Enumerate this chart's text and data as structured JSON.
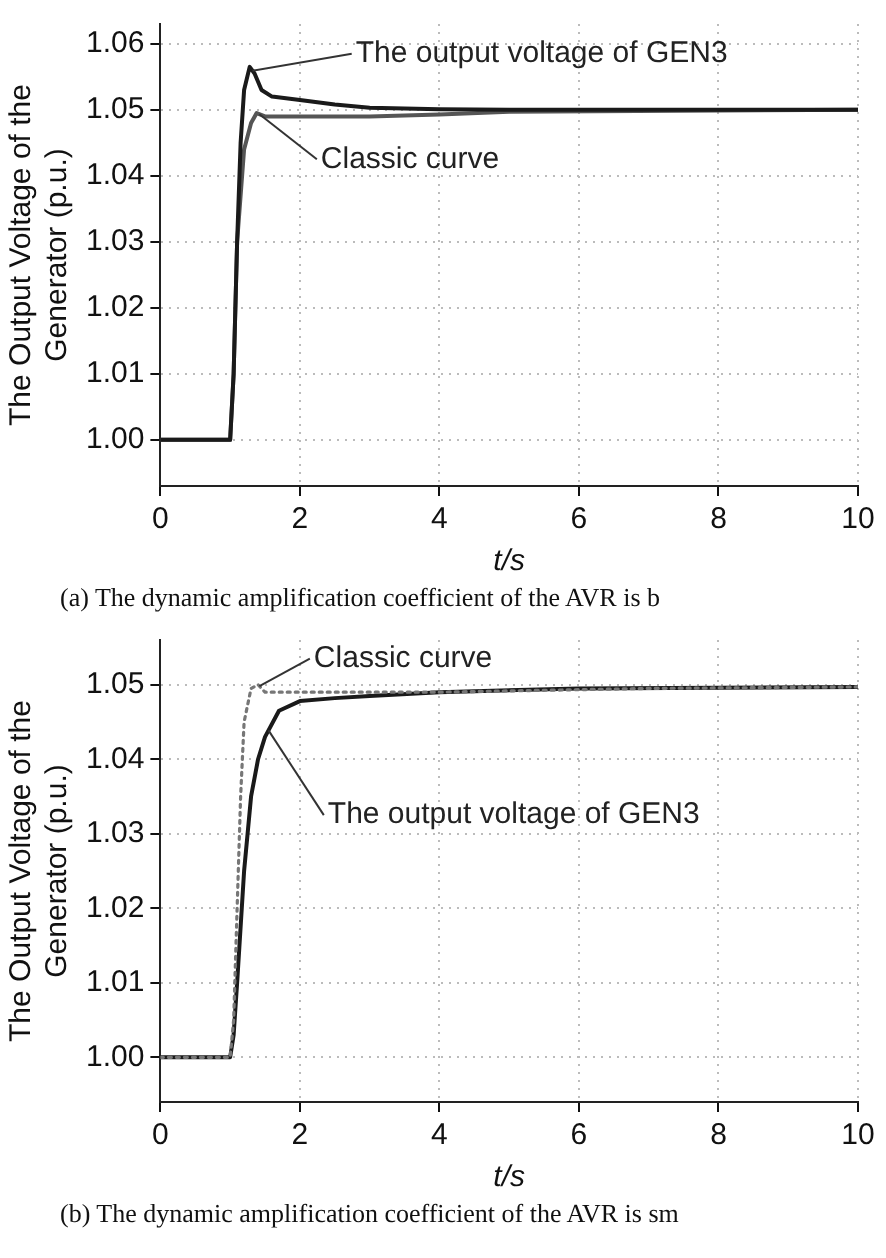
{
  "chart_data": [
    {
      "type": "line",
      "xlabel": "t/s",
      "ylabel": "The Output Voltage of the\nGenerator (p.u.)",
      "xlim": [
        0,
        10
      ],
      "xticks": [
        0,
        2,
        4,
        6,
        8,
        10
      ],
      "ylim": [
        0.993,
        1.063
      ],
      "yticks": [
        {
          "value": 1,
          "label": "1.00"
        },
        1.01,
        1.02,
        1.03,
        1.04,
        1.05,
        1.06
      ],
      "grid": true,
      "legend": false,
      "marker": "none",
      "series": [
        {
          "name": "The output voltage of GEN3",
          "color": "#1a1a1a",
          "line_style": "solid",
          "x": [
            0,
            1,
            1.05,
            1.1,
            1.15,
            1.2,
            1.28,
            1.35,
            1.45,
            1.6,
            2,
            2.5,
            3,
            4,
            5,
            10
          ],
          "values": [
            1,
            1,
            1.01,
            1.03,
            1.045,
            1.053,
            1.0565,
            1.0555,
            1.053,
            1.052,
            1.0515,
            1.0508,
            1.0503,
            1.0501,
            1.05,
            1.05
          ]
        },
        {
          "name": "Classic curve",
          "color": "#555555",
          "line_style": "solid",
          "x": [
            0,
            1,
            1.05,
            1.1,
            1.2,
            1.3,
            1.38,
            1.5,
            2,
            3,
            4,
            5,
            10
          ],
          "values": [
            1,
            1,
            1.01,
            1.03,
            1.044,
            1.048,
            1.0495,
            1.049,
            1.049,
            1.049,
            1.0493,
            1.0497,
            1.05
          ]
        }
      ],
      "annotations": [
        "(a)   The dynamic amplification coefficient of the AVR is b"
      ]
    },
    {
      "type": "line",
      "xlabel": "t/s",
      "ylabel": "The Output Voltage of the\nGenerator (p.u.)",
      "xlim": [
        0,
        10
      ],
      "xticks": [
        0,
        2,
        4,
        6,
        8,
        10
      ],
      "ylim": [
        0.994,
        1.056
      ],
      "yticks": [
        {
          "value": 1,
          "label": "1.00"
        },
        1.01,
        1.02,
        1.03,
        1.04,
        1.05
      ],
      "grid": true,
      "legend": false,
      "marker": "none",
      "series": [
        {
          "name": "Classic curve",
          "color": "#777777",
          "line_style": "dotted",
          "x": [
            0,
            1,
            1.05,
            1.1,
            1.15,
            1.2,
            1.3,
            1.4,
            1.5,
            2,
            4,
            7,
            10
          ],
          "values": [
            1,
            1,
            1.005,
            1.02,
            1.035,
            1.045,
            1.0495,
            1.05,
            1.049,
            1.049,
            1.049,
            1.0495,
            1.0497
          ]
        },
        {
          "name": "The output voltage of GEN3",
          "color": "#1a1a1a",
          "line_style": "solid",
          "x": [
            0,
            1,
            1.05,
            1.1,
            1.2,
            1.3,
            1.4,
            1.5,
            1.7,
            2,
            2.5,
            3,
            4,
            6,
            10
          ],
          "values": [
            1,
            1,
            1.003,
            1.01,
            1.025,
            1.035,
            1.04,
            1.043,
            1.0465,
            1.0478,
            1.0482,
            1.0485,
            1.049,
            1.0495,
            1.0497
          ]
        }
      ],
      "annotations": [
        "(b)   The dynamic amplification coefficient of the AVR is sm"
      ]
    }
  ]
}
